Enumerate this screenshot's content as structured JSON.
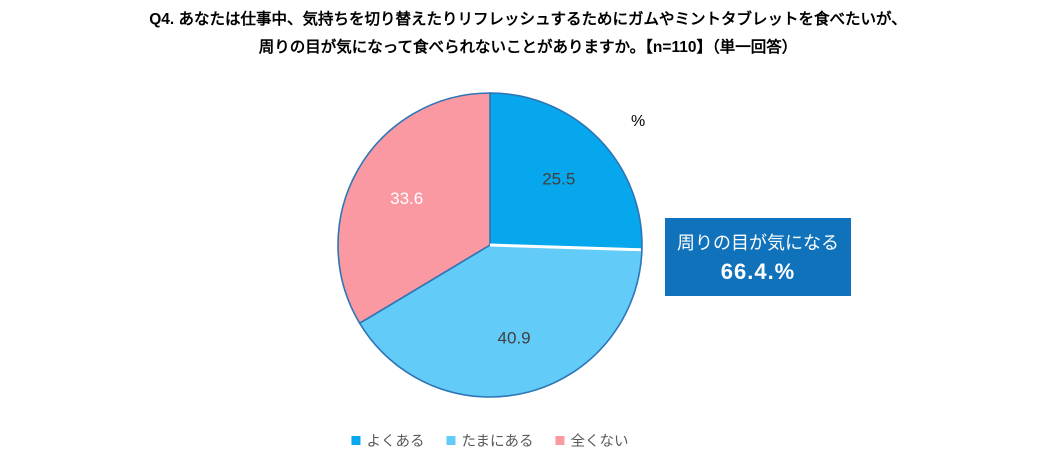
{
  "title": {
    "line1": "Q4. あなたは仕事中、気持ちを切り替えたりリフレッシュするためにガムやミントタブレットを食べたいが、",
    "line2": "周りの目が気になって食べられないことがありますか。【n=110】（単一回答）"
  },
  "chart_data": {
    "type": "pie",
    "categories": [
      "よくある",
      "たまにある",
      "全くない"
    ],
    "values": [
      25.5,
      40.9,
      33.6
    ],
    "unit_label": "%",
    "colors": [
      "#06A7EC",
      "#63CBF7",
      "#FB99A3"
    ],
    "label_colors": [
      "#404040",
      "#404040",
      "#FFFFFF"
    ],
    "border_color": "#2E75B6",
    "separator": {
      "after_index": 0,
      "color": "#FFFFFF"
    },
    "start_angle_deg": 0,
    "direction": "clockwise",
    "legend_position": "bottom",
    "title": "Q4. あなたは仕事中、気持ちを切り替えたりリフレッシュするためにガムやミントタブレットを食べたいが、周りの目が気になって食べられないことがありますか。【n=110】（単一回答）"
  },
  "callout": {
    "line1": "周りの目が気になる",
    "line2": "66.4.%",
    "background": "#1072BA",
    "text_color": "#FFFFFF"
  },
  "legend": {
    "items": [
      {
        "label": "よくある",
        "color": "#06A7EC"
      },
      {
        "label": "たまにある",
        "color": "#63CBF7"
      },
      {
        "label": "全くない",
        "color": "#FB99A3"
      }
    ]
  }
}
